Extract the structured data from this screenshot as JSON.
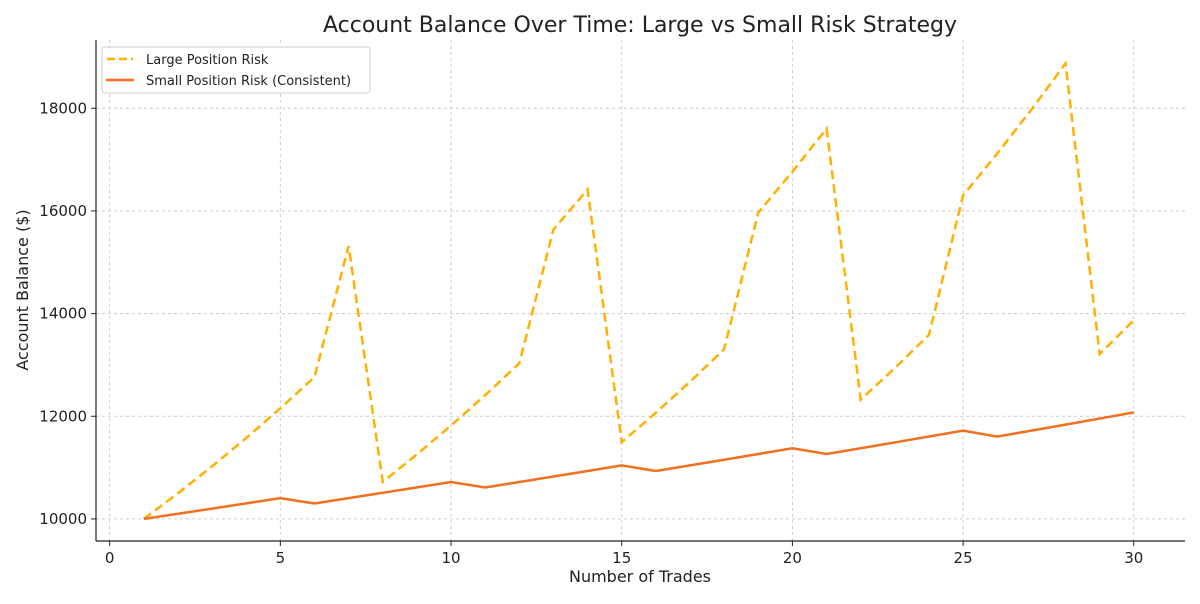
{
  "chart_data": {
    "type": "line",
    "title": "Account Balance Over Time: Large vs Small Risk Strategy",
    "xlabel": "Number of Trades",
    "ylabel": "Account Balance ($)",
    "xlim": [
      -0.4,
      31.5
    ],
    "ylim": [
      9570,
      19330
    ],
    "xticks": [
      0,
      5,
      10,
      15,
      20,
      25,
      30
    ],
    "yticks": [
      10000,
      12000,
      14000,
      16000,
      18000
    ],
    "grid": true,
    "legend_position": "top-left",
    "x": [
      1,
      2,
      3,
      4,
      5,
      6,
      7,
      8,
      9,
      10,
      11,
      12,
      13,
      14,
      15,
      16,
      17,
      18,
      19,
      20,
      21,
      22,
      23,
      24,
      25,
      26,
      27,
      28,
      29,
      30
    ],
    "series": [
      {
        "name": "Large Position Risk",
        "color": "#FFB000",
        "style": "dashed",
        "values": [
          10000,
          10500,
          11025,
          11576,
          12155,
          12763,
          15315,
          10721,
          11257,
          11820,
          12411,
          13031,
          15638,
          16420,
          11494,
          12069,
          12672,
          13306,
          15967,
          16765,
          17604,
          12323,
          12939,
          13586,
          16303,
          17118,
          17974,
          18873,
          13211,
          13872
        ]
      },
      {
        "name": "Small Position Risk (Consistent)",
        "color": "#F07020",
        "style": "solid",
        "values": [
          10000,
          10100,
          10201,
          10303,
          10406,
          10302,
          10405,
          10509,
          10614,
          10720,
          10613,
          10719,
          10826,
          10934,
          11044,
          10933,
          11043,
          11153,
          11265,
          11377,
          11264,
          11376,
          11490,
          11605,
          11721,
          11604,
          11720,
          11837,
          11955,
          12075
        ]
      }
    ]
  }
}
